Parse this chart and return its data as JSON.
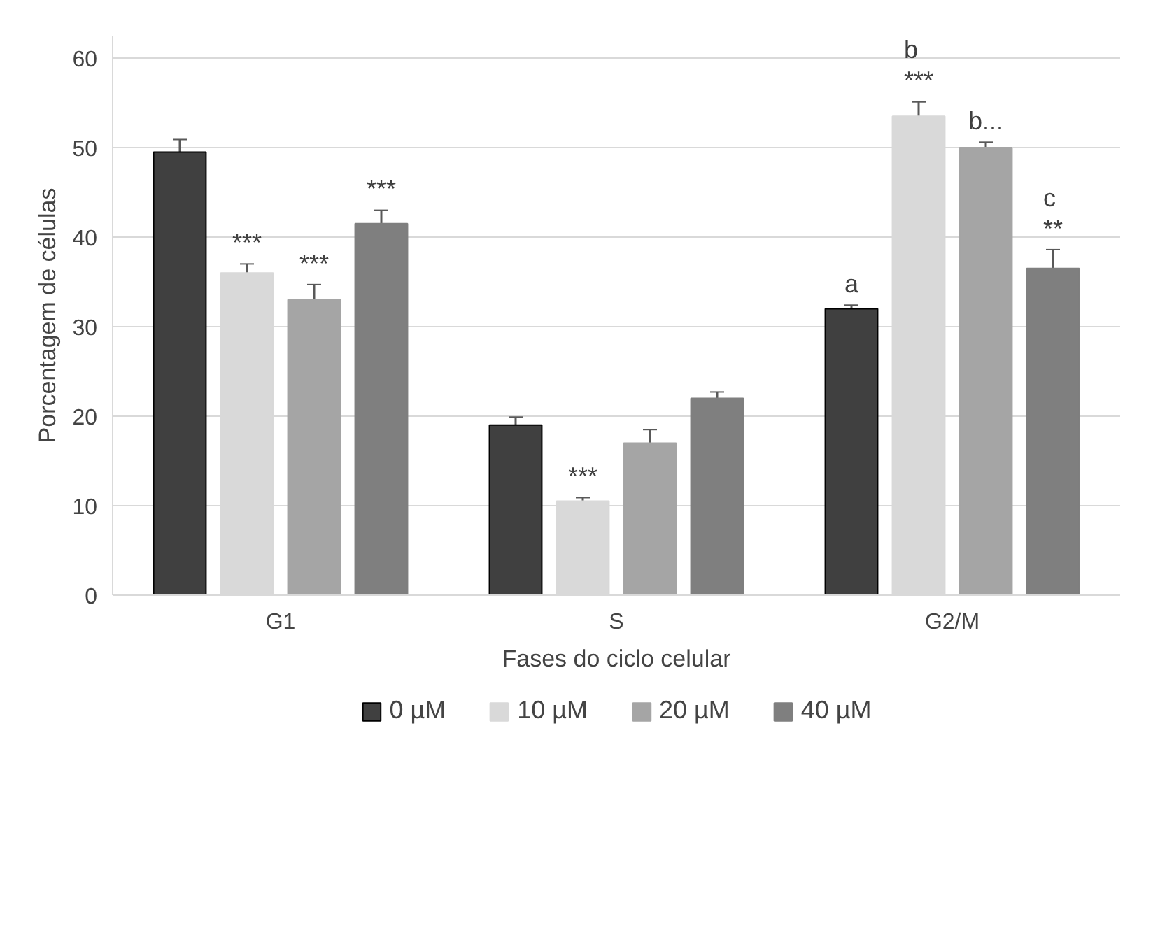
{
  "chart_data": {
    "type": "bar",
    "xlabel": "Fases do ciclo celular",
    "ylabel": "Porcentagem de células",
    "categories": [
      "G1",
      "S",
      "G2/M"
    ],
    "series": [
      {
        "name": "0 µM",
        "color": "#404040",
        "values": [
          49.5,
          19,
          32
        ],
        "errors": [
          1.4,
          0.9,
          0.4
        ],
        "value_labels": [
          null,
          null,
          "a"
        ]
      },
      {
        "name": "10 µM",
        "color": "#d9d9d9",
        "values": [
          36,
          10.5,
          53.5
        ],
        "errors": [
          1.0,
          0.4,
          1.6
        ],
        "value_labels": [
          "***",
          "***",
          "b\n***"
        ]
      },
      {
        "name": "20 µM",
        "color": "#a5a5a5",
        "values": [
          33,
          17,
          50
        ],
        "errors": [
          1.7,
          1.5,
          0.6
        ],
        "value_labels": [
          "***",
          null,
          "b..."
        ]
      },
      {
        "name": "40 µM",
        "color": "#7f7f7f",
        "values": [
          41.5,
          22,
          36.5
        ],
        "errors": [
          1.5,
          0.7,
          2.1
        ],
        "value_labels": [
          "***",
          null,
          "c\n**"
        ]
      }
    ],
    "ylim": [
      0,
      62.5
    ],
    "yticks": [
      0,
      10,
      20,
      30,
      40,
      50,
      60
    ],
    "grid": "y",
    "legend": "bottom"
  }
}
